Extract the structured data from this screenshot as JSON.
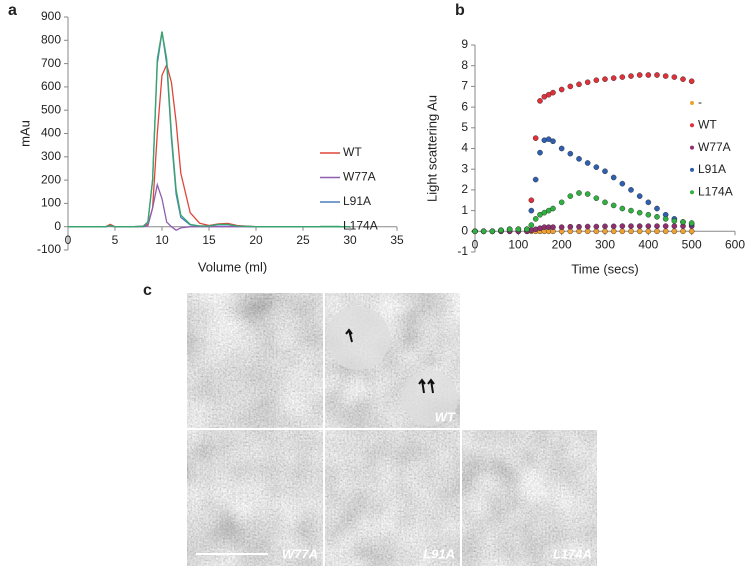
{
  "panels": [
    "a",
    "b",
    "c"
  ],
  "micrographs": [
    {
      "label": "WT"
    },
    {
      "label": "W77A"
    },
    {
      "label": "L91A"
    },
    {
      "label": "L174A"
    }
  ],
  "chart_data": [
    {
      "type": "line",
      "y_label": "mAu",
      "x_label": "Volume (ml)",
      "x": [
        0,
        2,
        4,
        4.5,
        5,
        6,
        7,
        8,
        8.5,
        9,
        9.5,
        10,
        10.5,
        11,
        11.5,
        12,
        13,
        14,
        15,
        16,
        17,
        18,
        20,
        25,
        30
      ],
      "series": [
        {
          "name": "WT",
          "color": "#e0453a",
          "values": [
            0,
            0,
            0,
            10,
            0,
            0,
            0,
            2,
            10,
            80,
            400,
            650,
            695,
            620,
            450,
            230,
            60,
            15,
            5,
            12,
            14,
            5,
            0,
            0,
            0
          ]
        },
        {
          "name": "W77A",
          "color": "#8e5fb0",
          "values": [
            0,
            0,
            0,
            5,
            0,
            0,
            0,
            0,
            5,
            80,
            180,
            120,
            20,
            0,
            -15,
            -5,
            0,
            0,
            0,
            0,
            0,
            0,
            0,
            0,
            0
          ]
        },
        {
          "name": "L91A",
          "color": "#4a7fbf",
          "values": [
            0,
            0,
            0,
            5,
            0,
            0,
            0,
            2,
            20,
            200,
            700,
            835,
            700,
            380,
            140,
            40,
            8,
            3,
            3,
            8,
            8,
            3,
            0,
            0,
            0
          ]
        },
        {
          "name": "L174A",
          "color": "#3aa56a",
          "values": [
            0,
            0,
            0,
            5,
            0,
            0,
            0,
            2,
            20,
            200,
            720,
            838,
            720,
            400,
            160,
            50,
            10,
            3,
            3,
            10,
            10,
            3,
            0,
            0,
            0
          ]
        }
      ],
      "xlim": [
        0,
        35
      ],
      "xticks": [
        0,
        5,
        10,
        15,
        20,
        25,
        30,
        35
      ],
      "ylim": [
        -100,
        900
      ],
      "yticks": [
        -100,
        0,
        100,
        200,
        300,
        400,
        500,
        600,
        700,
        800,
        900
      ],
      "legend": "right"
    },
    {
      "type": "scatter",
      "y_label": "Light scattering Au",
      "x_label": "Time (secs)",
      "x": [
        0,
        20,
        40,
        60,
        80,
        100,
        120,
        130,
        140,
        150,
        160,
        170,
        180,
        200,
        220,
        240,
        260,
        280,
        300,
        320,
        340,
        360,
        380,
        400,
        420,
        440,
        460,
        480,
        500
      ],
      "series": [
        {
          "name": "-",
          "color": "#f0a030",
          "values": [
            0,
            0,
            0,
            0,
            0,
            0,
            0,
            0,
            0,
            0,
            0,
            0,
            0,
            0,
            0,
            0,
            0,
            0,
            0,
            0,
            0,
            0,
            0,
            0,
            0,
            0,
            0,
            0,
            0
          ]
        },
        {
          "name": "WT",
          "color": "#e0303a",
          "values": [
            0,
            0,
            0,
            0.05,
            0.1,
            0.1,
            0.1,
            1.5,
            4.5,
            6.3,
            6.5,
            6.6,
            6.7,
            6.85,
            7.0,
            7.1,
            7.2,
            7.3,
            7.35,
            7.4,
            7.45,
            7.5,
            7.55,
            7.55,
            7.55,
            7.5,
            7.45,
            7.35,
            7.25
          ]
        },
        {
          "name": "W77A",
          "color": "#8e2f70",
          "values": [
            0,
            0,
            0,
            0,
            0,
            0,
            0,
            0.05,
            0.1,
            0.15,
            0.2,
            0.2,
            0.2,
            0.2,
            0.22,
            0.22,
            0.23,
            0.23,
            0.24,
            0.24,
            0.25,
            0.25,
            0.25,
            0.25,
            0.25,
            0.25,
            0.25,
            0.25,
            0.25
          ]
        },
        {
          "name": "L91A",
          "color": "#2f5fb0",
          "values": [
            0,
            0,
            0,
            0.05,
            0.1,
            0.1,
            0.1,
            1.0,
            2.5,
            3.8,
            4.4,
            4.45,
            4.35,
            4.0,
            3.75,
            3.5,
            3.3,
            3.1,
            2.9,
            2.6,
            2.3,
            2.0,
            1.7,
            1.4,
            1.1,
            0.8,
            0.6,
            0.45,
            0.35
          ]
        },
        {
          "name": "L174A",
          "color": "#30b040",
          "values": [
            0,
            0,
            0,
            0.05,
            0.1,
            0.1,
            0.1,
            0.3,
            0.6,
            0.8,
            0.9,
            1.0,
            1.1,
            1.4,
            1.7,
            1.85,
            1.8,
            1.6,
            1.4,
            1.25,
            1.1,
            1.0,
            0.9,
            0.8,
            0.7,
            0.6,
            0.5,
            0.45,
            0.4
          ]
        }
      ],
      "xlim": [
        0,
        600
      ],
      "xticks": [
        0,
        100,
        200,
        300,
        400,
        500,
        600
      ],
      "ylim": [
        -1,
        9
      ],
      "yticks": [
        -1,
        0,
        1,
        2,
        3,
        4,
        5,
        6,
        7,
        8,
        9
      ],
      "legend": "right"
    }
  ]
}
